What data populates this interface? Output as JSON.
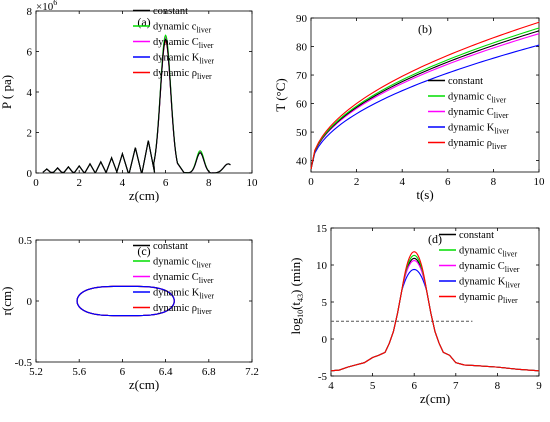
{
  "chart_data": [
    {
      "panel": "(a)",
      "type": "line",
      "xlabel": "z(cm)",
      "ylabel": "P ( pa)",
      "y_multiplier": "×10",
      "y_multiplier_exp": "6",
      "xlim": [
        0,
        10
      ],
      "ylim": [
        0,
        8
      ],
      "xticks": [
        "0",
        "2",
        "4",
        "6",
        "8",
        "10"
      ],
      "yticks": [
        "0",
        "2",
        "4",
        "6",
        "8"
      ],
      "legend": {
        "placement": "top-right"
      },
      "series_names": [
        "constant",
        "dynamic c",
        "dynamic C",
        "dynamic K",
        "dynamic ρ"
      ],
      "series_subscript": "liver",
      "peaks": [
        {
          "x": 6.0,
          "values": [
            6.6,
            6.8,
            6.7,
            6.6,
            6.5
          ]
        },
        {
          "x": 8.0,
          "values": [
            1.0,
            1.1,
            1.05,
            1.0,
            1.0
          ]
        }
      ],
      "sidelobe_peaks": {
        "x": [
          0.5,
          1.0,
          1.5,
          2.0,
          2.5,
          3.0,
          3.5,
          4.0,
          4.6,
          5.2
        ],
        "y": [
          0.2,
          0.25,
          0.3,
          0.35,
          0.45,
          0.55,
          0.75,
          0.95,
          1.25,
          1.6
        ]
      },
      "colors": [
        "#000000",
        "#00dd00",
        "#ff00ff",
        "#0000ff",
        "#ff0000"
      ]
    },
    {
      "panel": "(b)",
      "type": "line",
      "xlabel": "t(s)",
      "ylabel": "T (°C)",
      "xlim": [
        0,
        10
      ],
      "ylim": [
        36,
        90
      ],
      "xticks": [
        "0",
        "2",
        "4",
        "6",
        "8",
        "10"
      ],
      "yticks": [
        "40",
        "50",
        "60",
        "70",
        "80",
        "90"
      ],
      "legend": {
        "placement": "bottom-right"
      },
      "series_names": [
        "constant",
        "dynamic c",
        "dynamic C",
        "dynamic K",
        "dynamic ρ"
      ],
      "series_subscript": "liver",
      "start_value": 37,
      "end_values": [
        85.5,
        86.5,
        84.5,
        80.5,
        88.5
      ],
      "colors": [
        "#000000",
        "#00dd00",
        "#ff00ff",
        "#0000ff",
        "#ff0000"
      ]
    },
    {
      "panel": "(c)",
      "type": "line",
      "xlabel": "z(cm)",
      "ylabel": "r(cm)",
      "xlim": [
        5.2,
        7.2
      ],
      "ylim": [
        -0.5,
        0.5
      ],
      "xticks": [
        "5.2",
        "5.6",
        "6",
        "6.4",
        "6.8",
        "7.2"
      ],
      "yticks": [
        "-0.5",
        "0",
        "0.5"
      ],
      "legend": {
        "placement": "top-right"
      },
      "series_names": [
        "constant",
        "dynamic c",
        "dynamic C",
        "dynamic K",
        "dynamic ρ"
      ],
      "series_subscript": "liver",
      "ellipse": {
        "z_min": 5.58,
        "z_max": 6.48,
        "r_half": 0.12
      },
      "colors": [
        "#000000",
        "#00dd00",
        "#ff00ff",
        "#0000ff",
        "#ff0000"
      ]
    },
    {
      "panel": "(d)",
      "type": "line",
      "xlabel": "z(cm)",
      "ylabel": "log",
      "ylabel_sub": "10",
      "ylabel_rest": "(t",
      "ylabel_sub2": "43",
      "ylabel_end": ") (min)",
      "xlim": [
        4,
        9
      ],
      "ylim": [
        -5,
        15
      ],
      "xticks": [
        "4",
        "5",
        "6",
        "7",
        "8",
        "9"
      ],
      "yticks": [
        "-5",
        "0",
        "5",
        "10",
        "15"
      ],
      "legend": {
        "placement": "top-right"
      },
      "series_names": [
        "constant",
        "dynamic c",
        "dynamic C",
        "dynamic K",
        "dynamic ρ"
      ],
      "series_subscript": "liver",
      "reference_line": {
        "y": 2.4,
        "x_range": [
          4,
          7.4
        ]
      },
      "peak_values": [
        10.9,
        11.3,
        10.6,
        9.4,
        11.8
      ],
      "baseline_curve": {
        "x": [
          4.0,
          4.2,
          4.4,
          4.6,
          4.8,
          5.0,
          5.15,
          5.3,
          5.4,
          5.5,
          5.6,
          5.7,
          6.3,
          6.4,
          6.5,
          6.6,
          6.7,
          6.85,
          7.0,
          7.2,
          7.5,
          8.0,
          8.5,
          9.0
        ],
        "y": [
          -4.3,
          -4.2,
          -3.8,
          -3.5,
          -3.2,
          -2.5,
          -2.2,
          -1.8,
          -0.6,
          1.0,
          3.5,
          6.5,
          6.5,
          3.5,
          1.0,
          -0.6,
          -1.8,
          -2.2,
          -3.2,
          -3.5,
          -3.6,
          -3.8,
          -4.1,
          -4.3
        ]
      },
      "colors": [
        "#000000",
        "#00dd00",
        "#ff00ff",
        "#0000ff",
        "#ff0000"
      ]
    }
  ]
}
